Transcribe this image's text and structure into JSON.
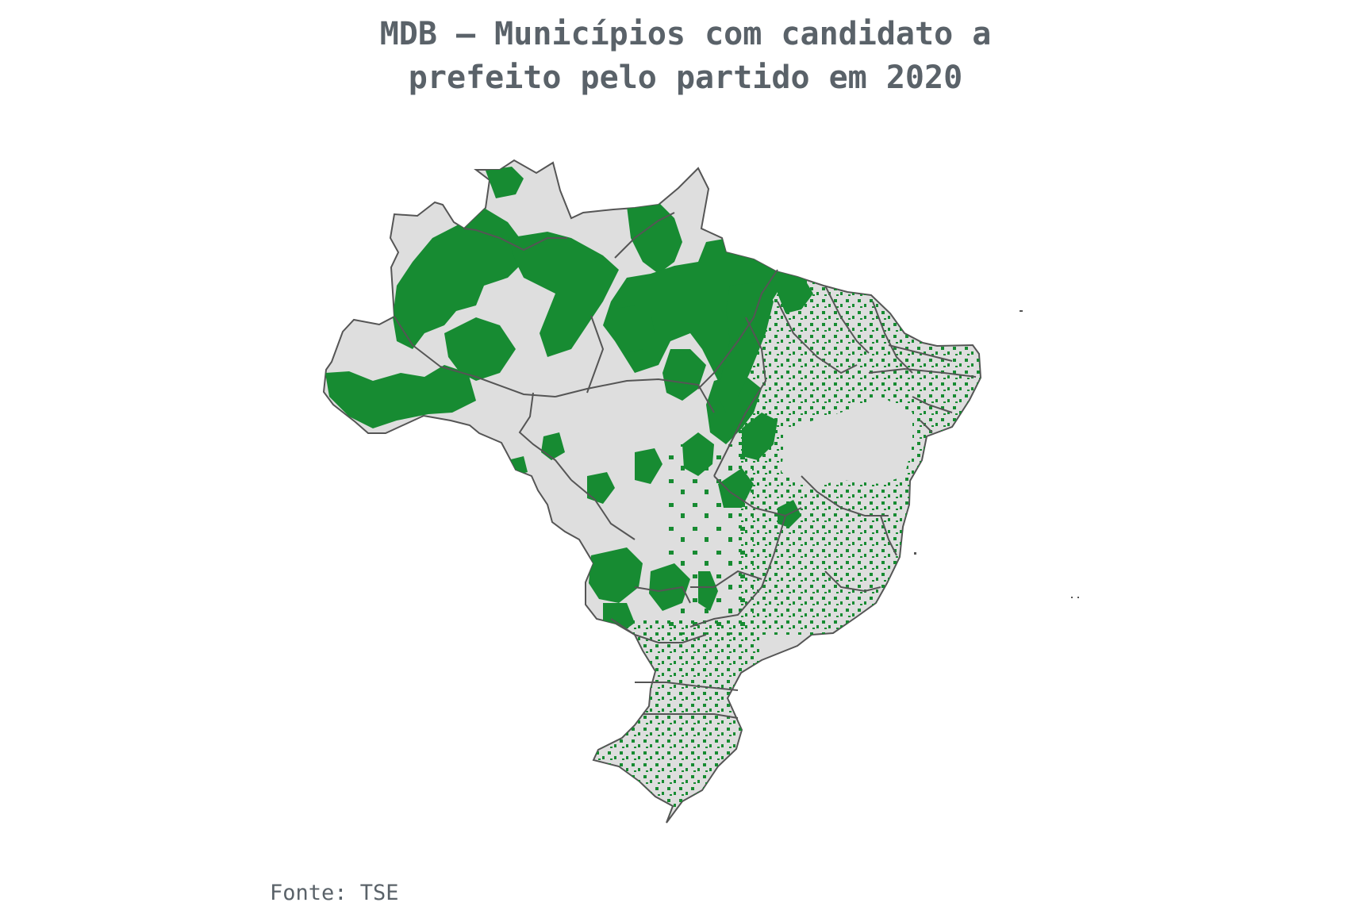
{
  "title_line1": "MDB – Municípios com candidato a",
  "title_line2": "prefeito pelo partido em 2020",
  "source": "Fonte: TSE",
  "colors": {
    "with_candidate": "#178b32",
    "without_candidate": "#dedede",
    "borders": "#555555",
    "text": "#5a6269"
  },
  "legend_semantics": {
    "green": "with_candidate",
    "gray": "without_candidate"
  }
}
